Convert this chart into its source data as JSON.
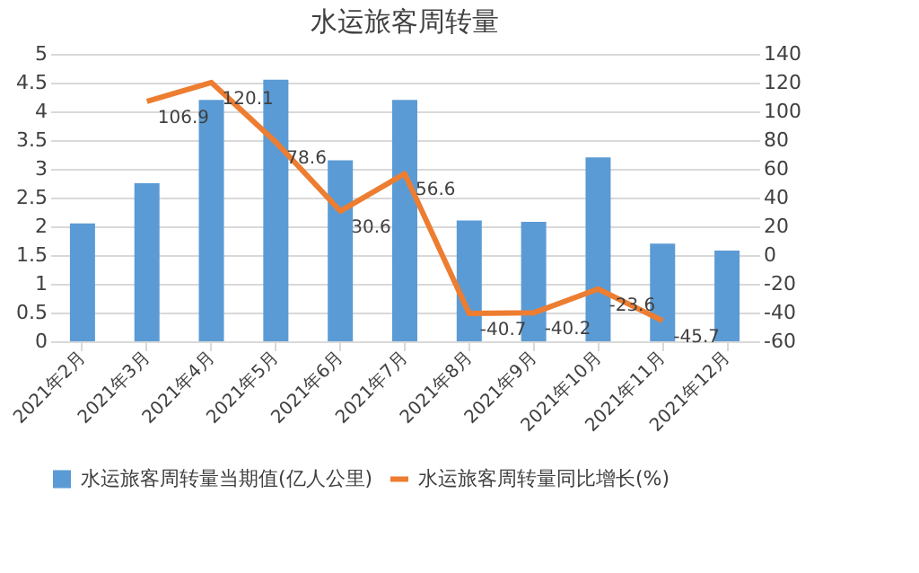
{
  "chart_data": {
    "type": "bar",
    "title": "水运旅客周转量",
    "categories": [
      "2021年2月",
      "2021年3月",
      "2021年4月",
      "2021年5月",
      "2021年6月",
      "2021年7月",
      "2021年8月",
      "2021年9月",
      "2021年10月",
      "2021年11月",
      "2021年12月"
    ],
    "series": [
      {
        "name": "水运旅客周转量当期值(亿人公里)",
        "color": "#5b9bd5",
        "values": [
          2.05,
          2.75,
          4.2,
          4.55,
          3.15,
          4.2,
          2.1,
          2.08,
          3.2,
          1.7,
          1.58
        ]
      },
      {
        "name": "水运旅客周转量同比增长(%)",
        "color": "#ed7d31",
        "type": "line",
        "axis": "y2",
        "data_labels": true,
        "values": [
          null,
          106.9,
          120.1,
          78.6,
          30.6,
          56.6,
          -40.7,
          -40.2,
          -23.6,
          -45.7,
          null
        ]
      }
    ],
    "ylim": [
      0,
      5
    ],
    "yticks": [
      0,
      0.5,
      1,
      1.5,
      2,
      2.5,
      3,
      3.5,
      4,
      4.5,
      5
    ],
    "y2lim": [
      -60,
      140
    ],
    "y2ticks": [
      -60,
      -40,
      -20,
      0,
      20,
      40,
      60,
      80,
      100,
      120,
      140
    ],
    "grid": "y",
    "legend": "bottom",
    "marker": "none"
  }
}
